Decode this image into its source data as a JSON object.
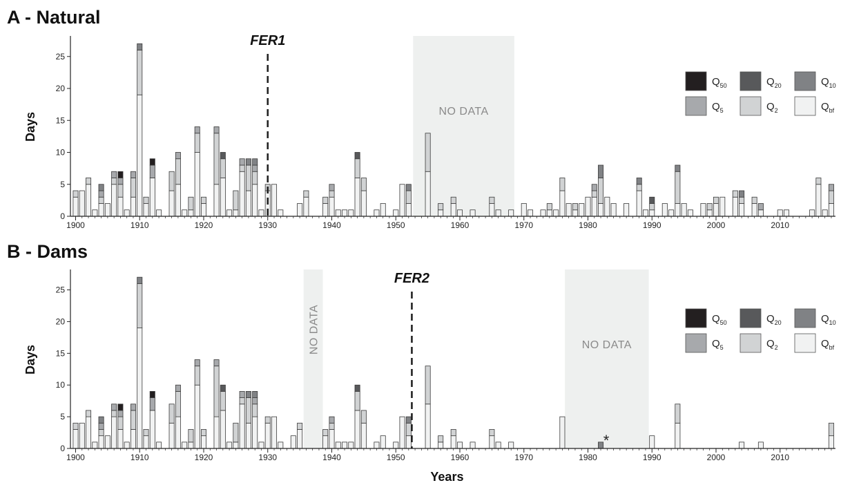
{
  "chart_data": [
    {
      "type": "bar",
      "stacked": true,
      "panel": "A - Natural",
      "title": "A - Natural",
      "xlabel": "",
      "ylabel": "Days",
      "xlim": [
        1899,
        2018
      ],
      "ylim": [
        0,
        28
      ],
      "x_ticks": [
        1900,
        1910,
        1920,
        1930,
        1940,
        1950,
        1960,
        1970,
        1980,
        1990,
        2000,
        2010
      ],
      "y_ticks": [
        0,
        5,
        10,
        15,
        20,
        25
      ],
      "legend": {
        "placement": "top-right",
        "entries": [
          {
            "key": "Q50",
            "base": "Q",
            "sub": "50",
            "color": "#231f20"
          },
          {
            "key": "Q20",
            "base": "Q",
            "sub": "20",
            "color": "#58595b"
          },
          {
            "key": "Q10",
            "base": "Q",
            "sub": "10",
            "color": "#808285"
          },
          {
            "key": "Q5",
            "base": "Q",
            "sub": "5",
            "color": "#a7a9ac"
          },
          {
            "key": "Q2",
            "base": "Q",
            "sub": "2",
            "color": "#d1d3d4"
          },
          {
            "key": "Qbf",
            "base": "Q",
            "sub": "bf",
            "color": "#f1f2f2"
          }
        ]
      },
      "markers": [
        {
          "label": "FER1",
          "year": 1930
        }
      ],
      "no_data": [
        {
          "label": "NO DATA",
          "from": 1952.7,
          "to": 1968.5,
          "orientation": "horizontal"
        }
      ],
      "bars": [
        {
          "year": 1900,
          "Qbf": 3,
          "Q2": 1
        },
        {
          "year": 1901,
          "Qbf": 4
        },
        {
          "year": 1902,
          "Qbf": 5,
          "Q2": 1
        },
        {
          "year": 1903,
          "Qbf": 1
        },
        {
          "year": 1904,
          "Qbf": 2,
          "Q2": 1,
          "Q5": 1,
          "Q10": 1
        },
        {
          "year": 1905,
          "Qbf": 2
        },
        {
          "year": 1906,
          "Qbf": 5,
          "Q2": 1,
          "Q5": 1
        },
        {
          "year": 1907,
          "Qbf": 3,
          "Q2": 2,
          "Q5": 1,
          "Q50": 1
        },
        {
          "year": 1908,
          "Qbf": 1
        },
        {
          "year": 1909,
          "Qbf": 3,
          "Q2": 3,
          "Q5": 1
        },
        {
          "year": 1910,
          "Qbf": 19,
          "Q2": 7,
          "Q10": 1
        },
        {
          "year": 1911,
          "Qbf": 2,
          "Q2": 1
        },
        {
          "year": 1912,
          "Qbf": 6,
          "Q5": 2,
          "Q50": 1
        },
        {
          "year": 1913,
          "Qbf": 1
        },
        {
          "year": 1915,
          "Qbf": 4,
          "Q2": 3
        },
        {
          "year": 1916,
          "Qbf": 5,
          "Q2": 4,
          "Q5": 1
        },
        {
          "year": 1917,
          "Qbf": 1
        },
        {
          "year": 1918,
          "Qbf": 1,
          "Q2": 2
        },
        {
          "year": 1919,
          "Qbf": 10,
          "Q2": 3,
          "Q5": 1
        },
        {
          "year": 1920,
          "Qbf": 2,
          "Q2": 1
        },
        {
          "year": 1922,
          "Qbf": 5,
          "Q2": 8,
          "Q5": 1
        },
        {
          "year": 1923,
          "Qbf": 6,
          "Q2": 3,
          "Q20": 1
        },
        {
          "year": 1924,
          "Qbf": 1
        },
        {
          "year": 1925,
          "Qbf": 1,
          "Q2": 3
        },
        {
          "year": 1926,
          "Qbf": 7,
          "Q2": 1,
          "Q5": 1
        },
        {
          "year": 1927,
          "Qbf": 4,
          "Q2": 4,
          "Q10": 1
        },
        {
          "year": 1928,
          "Qbf": 5,
          "Q2": 2,
          "Q5": 1,
          "Q10": 1
        },
        {
          "year": 1929,
          "Qbf": 1
        },
        {
          "year": 1930,
          "Qbf": 4,
          "Q2": 1
        },
        {
          "year": 1931,
          "Qbf": 5
        },
        {
          "year": 1932,
          "Qbf": 1
        },
        {
          "year": 1935,
          "Qbf": 2
        },
        {
          "year": 1936,
          "Qbf": 3,
          "Q2": 1
        },
        {
          "year": 1939,
          "Qbf": 2,
          "Q2": 1
        },
        {
          "year": 1940,
          "Qbf": 3,
          "Q2": 1,
          "Q5": 1
        },
        {
          "year": 1941,
          "Qbf": 1
        },
        {
          "year": 1942,
          "Qbf": 1
        },
        {
          "year": 1943,
          "Qbf": 1
        },
        {
          "year": 1944,
          "Qbf": 6,
          "Q2": 3,
          "Q20": 1
        },
        {
          "year": 1945,
          "Qbf": 4,
          "Q2": 2
        },
        {
          "year": 1947,
          "Qbf": 1
        },
        {
          "year": 1948,
          "Qbf": 2
        },
        {
          "year": 1950,
          "Qbf": 1
        },
        {
          "year": 1951,
          "Qbf": 5
        },
        {
          "year": 1952,
          "Qbf": 2,
          "Q2": 2,
          "Q10": 1
        },
        {
          "year": 1955,
          "Qbf": 7,
          "Q2": 6
        },
        {
          "year": 1957,
          "Qbf": 1,
          "Q2": 1
        },
        {
          "year": 1959,
          "Qbf": 2,
          "Q2": 1
        },
        {
          "year": 1960,
          "Qbf": 1
        },
        {
          "year": 1962,
          "Qbf": 1
        },
        {
          "year": 1965,
          "Qbf": 2,
          "Q2": 1
        },
        {
          "year": 1966,
          "Qbf": 1
        },
        {
          "year": 1968,
          "Qbf": 1
        },
        {
          "year": 1970,
          "Qbf": 2
        },
        {
          "year": 1971,
          "Qbf": 1
        },
        {
          "year": 1973,
          "Qbf": 1
        },
        {
          "year": 1974,
          "Qbf": 1,
          "Q2": 1
        },
        {
          "year": 1975,
          "Qbf": 1
        },
        {
          "year": 1976,
          "Qbf": 4,
          "Q2": 2
        },
        {
          "year": 1977,
          "Qbf": 2
        },
        {
          "year": 1978,
          "Qbf": 1,
          "Q2": 1
        },
        {
          "year": 1979,
          "Qbf": 2
        },
        {
          "year": 1980,
          "Qbf": 3
        },
        {
          "year": 1981,
          "Qbf": 3,
          "Q2": 1,
          "Q5": 1
        },
        {
          "year": 1982,
          "Qbf": 2,
          "Q2": 4,
          "Q10": 2
        },
        {
          "year": 1983,
          "Qbf": 3
        },
        {
          "year": 1984,
          "Qbf": 2
        },
        {
          "year": 1986,
          "Qbf": 2
        },
        {
          "year": 1988,
          "Qbf": 4,
          "Q2": 1,
          "Q10": 1
        },
        {
          "year": 1989,
          "Qbf": 1
        },
        {
          "year": 1990,
          "Qbf": 1,
          "Q2": 1,
          "Q20": 1
        },
        {
          "year": 1992,
          "Qbf": 2
        },
        {
          "year": 1993,
          "Qbf": 1
        },
        {
          "year": 1994,
          "Qbf": 2,
          "Q2": 5,
          "Q10": 1
        },
        {
          "year": 1995,
          "Qbf": 2
        },
        {
          "year": 1996,
          "Qbf": 1
        },
        {
          "year": 1998,
          "Qbf": 2
        },
        {
          "year": 1999,
          "Qbf": 1,
          "Q2": 1
        },
        {
          "year": 2000,
          "Qbf": 2,
          "Q2": 1
        },
        {
          "year": 2001,
          "Qbf": 3
        },
        {
          "year": 2003,
          "Qbf": 3,
          "Q2": 1
        },
        {
          "year": 2004,
          "Qbf": 2,
          "Q2": 1,
          "Q10": 1
        },
        {
          "year": 2006,
          "Qbf": 2,
          "Q2": 1
        },
        {
          "year": 2007,
          "Qbf": 1,
          "Q5": 1
        },
        {
          "year": 2010,
          "Qbf": 1
        },
        {
          "year": 2011,
          "Qbf": 1
        },
        {
          "year": 2015,
          "Qbf": 1
        },
        {
          "year": 2016,
          "Qbf": 5,
          "Q2": 1
        },
        {
          "year": 2017,
          "Qbf": 1
        },
        {
          "year": 2018,
          "Qbf": 2,
          "Q2": 2,
          "Q5": 1
        }
      ]
    },
    {
      "type": "bar",
      "stacked": true,
      "panel": "B - Dams",
      "title": "B - Dams",
      "xlabel": "Years",
      "ylabel": "Days",
      "xlim": [
        1899,
        2018
      ],
      "ylim": [
        0,
        28
      ],
      "x_ticks": [
        1900,
        1910,
        1920,
        1930,
        1940,
        1950,
        1960,
        1970,
        1980,
        1990,
        2000,
        2010
      ],
      "y_ticks": [
        0,
        5,
        10,
        15,
        20,
        25
      ],
      "legend": {
        "placement": "top-right",
        "entries": [
          {
            "key": "Q50",
            "base": "Q",
            "sub": "50",
            "color": "#231f20"
          },
          {
            "key": "Q20",
            "base": "Q",
            "sub": "20",
            "color": "#58595b"
          },
          {
            "key": "Q10",
            "base": "Q",
            "sub": "10",
            "color": "#808285"
          },
          {
            "key": "Q5",
            "base": "Q",
            "sub": "5",
            "color": "#a7a9ac"
          },
          {
            "key": "Q2",
            "base": "Q",
            "sub": "2",
            "color": "#d1d3d4"
          },
          {
            "key": "Qbf",
            "base": "Q",
            "sub": "bf",
            "color": "#f1f2f2"
          }
        ]
      },
      "markers": [
        {
          "label": "FER2",
          "year": 1952.5
        }
      ],
      "no_data": [
        {
          "label": "NO DATA",
          "from": 1935.6,
          "to": 1938.6,
          "orientation": "vertical"
        },
        {
          "label": "NO DATA",
          "from": 1976.4,
          "to": 1989.5,
          "orientation": "horizontal"
        }
      ],
      "annotations": [
        {
          "text": "*",
          "year": 1982,
          "value": 1.3
        }
      ],
      "bars": [
        {
          "year": 1900,
          "Qbf": 3,
          "Q2": 1
        },
        {
          "year": 1901,
          "Qbf": 4
        },
        {
          "year": 1902,
          "Qbf": 5,
          "Q2": 1
        },
        {
          "year": 1903,
          "Qbf": 1
        },
        {
          "year": 1904,
          "Qbf": 2,
          "Q2": 1,
          "Q5": 1,
          "Q10": 1
        },
        {
          "year": 1905,
          "Qbf": 2
        },
        {
          "year": 1906,
          "Qbf": 5,
          "Q2": 1,
          "Q5": 1
        },
        {
          "year": 1907,
          "Qbf": 3,
          "Q2": 2,
          "Q5": 1,
          "Q50": 1
        },
        {
          "year": 1908,
          "Qbf": 1
        },
        {
          "year": 1909,
          "Qbf": 3,
          "Q2": 3,
          "Q5": 1
        },
        {
          "year": 1910,
          "Qbf": 19,
          "Q2": 7,
          "Q10": 1
        },
        {
          "year": 1911,
          "Qbf": 2,
          "Q2": 1
        },
        {
          "year": 1912,
          "Qbf": 6,
          "Q5": 2,
          "Q50": 1
        },
        {
          "year": 1913,
          "Qbf": 1
        },
        {
          "year": 1915,
          "Qbf": 4,
          "Q2": 3
        },
        {
          "year": 1916,
          "Qbf": 5,
          "Q2": 4,
          "Q5": 1
        },
        {
          "year": 1917,
          "Qbf": 1
        },
        {
          "year": 1918,
          "Qbf": 1,
          "Q2": 2
        },
        {
          "year": 1919,
          "Qbf": 10,
          "Q2": 3,
          "Q5": 1
        },
        {
          "year": 1920,
          "Qbf": 2,
          "Q2": 1
        },
        {
          "year": 1922,
          "Qbf": 5,
          "Q2": 8,
          "Q5": 1
        },
        {
          "year": 1923,
          "Qbf": 6,
          "Q2": 3,
          "Q20": 1
        },
        {
          "year": 1924,
          "Qbf": 1
        },
        {
          "year": 1925,
          "Qbf": 1,
          "Q2": 3
        },
        {
          "year": 1926,
          "Qbf": 7,
          "Q2": 1,
          "Q5": 1
        },
        {
          "year": 1927,
          "Qbf": 4,
          "Q2": 4,
          "Q10": 1
        },
        {
          "year": 1928,
          "Qbf": 5,
          "Q2": 2,
          "Q5": 1,
          "Q10": 1
        },
        {
          "year": 1929,
          "Qbf": 1
        },
        {
          "year": 1930,
          "Qbf": 4,
          "Q2": 1
        },
        {
          "year": 1931,
          "Qbf": 5
        },
        {
          "year": 1932,
          "Qbf": 1
        },
        {
          "year": 1934,
          "Qbf": 2
        },
        {
          "year": 1935,
          "Qbf": 3,
          "Q2": 1
        },
        {
          "year": 1939,
          "Qbf": 2,
          "Q2": 1
        },
        {
          "year": 1940,
          "Qbf": 3,
          "Q2": 1,
          "Q5": 1
        },
        {
          "year": 1941,
          "Qbf": 1
        },
        {
          "year": 1942,
          "Qbf": 1
        },
        {
          "year": 1943,
          "Qbf": 1
        },
        {
          "year": 1944,
          "Qbf": 6,
          "Q2": 3,
          "Q20": 1
        },
        {
          "year": 1945,
          "Qbf": 4,
          "Q2": 2
        },
        {
          "year": 1947,
          "Qbf": 1
        },
        {
          "year": 1948,
          "Qbf": 2
        },
        {
          "year": 1950,
          "Qbf": 1
        },
        {
          "year": 1951,
          "Qbf": 5
        },
        {
          "year": 1952,
          "Qbf": 2,
          "Q2": 2,
          "Q10": 1
        },
        {
          "year": 1955,
          "Qbf": 7,
          "Q2": 6
        },
        {
          "year": 1957,
          "Qbf": 1,
          "Q2": 1
        },
        {
          "year": 1959,
          "Qbf": 2,
          "Q2": 1
        },
        {
          "year": 1960,
          "Qbf": 1
        },
        {
          "year": 1962,
          "Qbf": 1
        },
        {
          "year": 1965,
          "Qbf": 2,
          "Q2": 1
        },
        {
          "year": 1966,
          "Qbf": 1
        },
        {
          "year": 1968,
          "Qbf": 1
        },
        {
          "year": 1976,
          "Qbf": 5
        },
        {
          "year": 1982,
          "Q10": 1
        },
        {
          "year": 1990,
          "Qbf": 2
        },
        {
          "year": 1994,
          "Qbf": 4,
          "Q2": 3
        },
        {
          "year": 2004,
          "Qbf": 1
        },
        {
          "year": 2007,
          "Qbf": 1
        },
        {
          "year": 2018,
          "Qbf": 2,
          "Q2": 2
        }
      ]
    }
  ]
}
